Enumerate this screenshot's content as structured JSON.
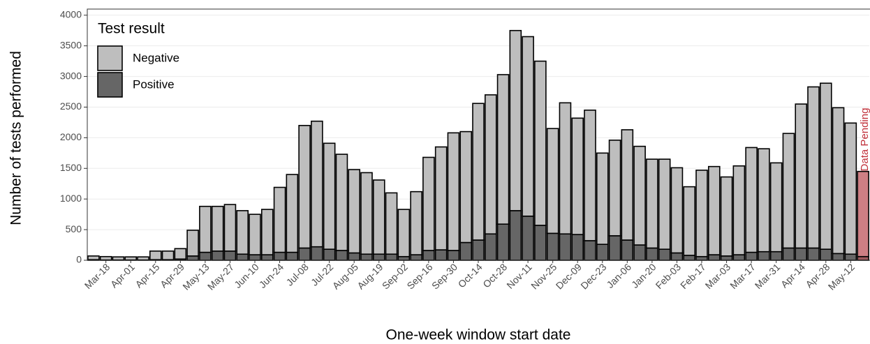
{
  "chart_data": {
    "type": "stacked_bar",
    "x_label": "One-week window start date",
    "y_label": "Number of tests performed",
    "legend_title": "Test result",
    "legend_position": "top-left",
    "grid": true,
    "ylim": [
      0,
      4100
    ],
    "yticks": [
      0,
      500,
      1000,
      1500,
      2000,
      2500,
      3000,
      3500,
      4000
    ],
    "categories": [
      null,
      "Mar-18",
      null,
      "Apr-01",
      null,
      "Apr-15",
      null,
      "Apr-29",
      null,
      "May-13",
      null,
      "May-27",
      null,
      "Jun-10",
      null,
      "Jun-24",
      null,
      "Jul-08",
      null,
      "Jul-22",
      null,
      "Aug-05",
      null,
      "Aug-19",
      null,
      "Sep-02",
      null,
      "Sep-16",
      null,
      "Sep-30",
      null,
      "Oct-14",
      null,
      "Oct-28",
      null,
      "Nov-11",
      null,
      "Nov-25",
      null,
      "Dec-09",
      null,
      "Dec-23",
      null,
      "Jan-06",
      null,
      "Jan-20",
      null,
      "Feb-03",
      null,
      "Feb-17",
      null,
      "Mar-03",
      null,
      "Mar-17",
      null,
      "Mar-31",
      null,
      "Apr-14",
      null,
      "Apr-28",
      null,
      "May-12",
      null
    ],
    "series": [
      {
        "name": "Positive",
        "color": "#666666",
        "highlight_color": "#9c5a5e",
        "values": [
          10,
          5,
          5,
          5,
          5,
          10,
          10,
          20,
          70,
          130,
          150,
          150,
          100,
          90,
          90,
          130,
          130,
          200,
          220,
          180,
          160,
          120,
          100,
          100,
          100,
          60,
          90,
          160,
          170,
          160,
          290,
          330,
          430,
          590,
          810,
          720,
          570,
          440,
          430,
          420,
          320,
          260,
          400,
          330,
          250,
          200,
          180,
          120,
          80,
          60,
          90,
          70,
          90,
          130,
          140,
          140,
          200,
          200,
          200,
          180,
          110,
          100,
          60
        ]
      },
      {
        "name": "Negative",
        "color": "#bebebe",
        "highlight_color": "#cd7f84",
        "values": [
          60,
          55,
          50,
          50,
          50,
          140,
          140,
          170,
          420,
          750,
          730,
          760,
          710,
          660,
          740,
          1060,
          1270,
          2000,
          2050,
          1730,
          1570,
          1360,
          1330,
          1210,
          1000,
          770,
          1030,
          1520,
          1680,
          1920,
          1810,
          2230,
          2270,
          2440,
          2940,
          2930,
          2680,
          1710,
          2140,
          1900,
          2130,
          1490,
          1560,
          1800,
          1610,
          1450,
          1470,
          1390,
          1120,
          1410,
          1440,
          1290,
          1450,
          1710,
          1680,
          1450,
          1870,
          2350,
          2630,
          2710,
          2380,
          2140,
          1390
        ]
      }
    ],
    "annotations": [
      {
        "text": "Data Pending",
        "category_index": 62,
        "color": "#c0303a"
      }
    ]
  }
}
